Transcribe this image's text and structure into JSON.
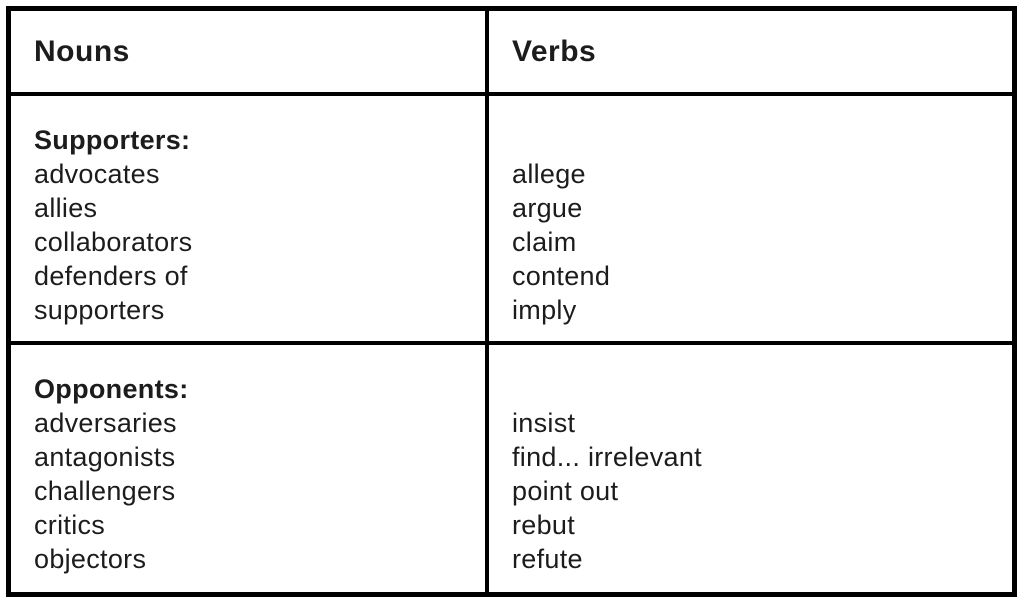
{
  "table": {
    "header": {
      "nouns_label": "Nouns",
      "verbs_label": "Verbs"
    },
    "rows": [
      {
        "group_label": "Supporters:",
        "nouns": [
          "advocates",
          "allies",
          "collaborators",
          "defenders of",
          "supporters"
        ],
        "verbs": [
          "allege",
          "argue",
          "claim",
          "contend",
          "imply"
        ]
      },
      {
        "group_label": "Opponents:",
        "nouns": [
          "adversaries",
          "antagonists",
          "challengers",
          "critics",
          "objectors"
        ],
        "verbs": [
          "insist",
          "find... irrelevant",
          "point out",
          "rebut",
          "refute"
        ]
      }
    ]
  },
  "colors": {
    "border": "#000000",
    "text": "#1c1c1c",
    "background": "#ffffff"
  }
}
